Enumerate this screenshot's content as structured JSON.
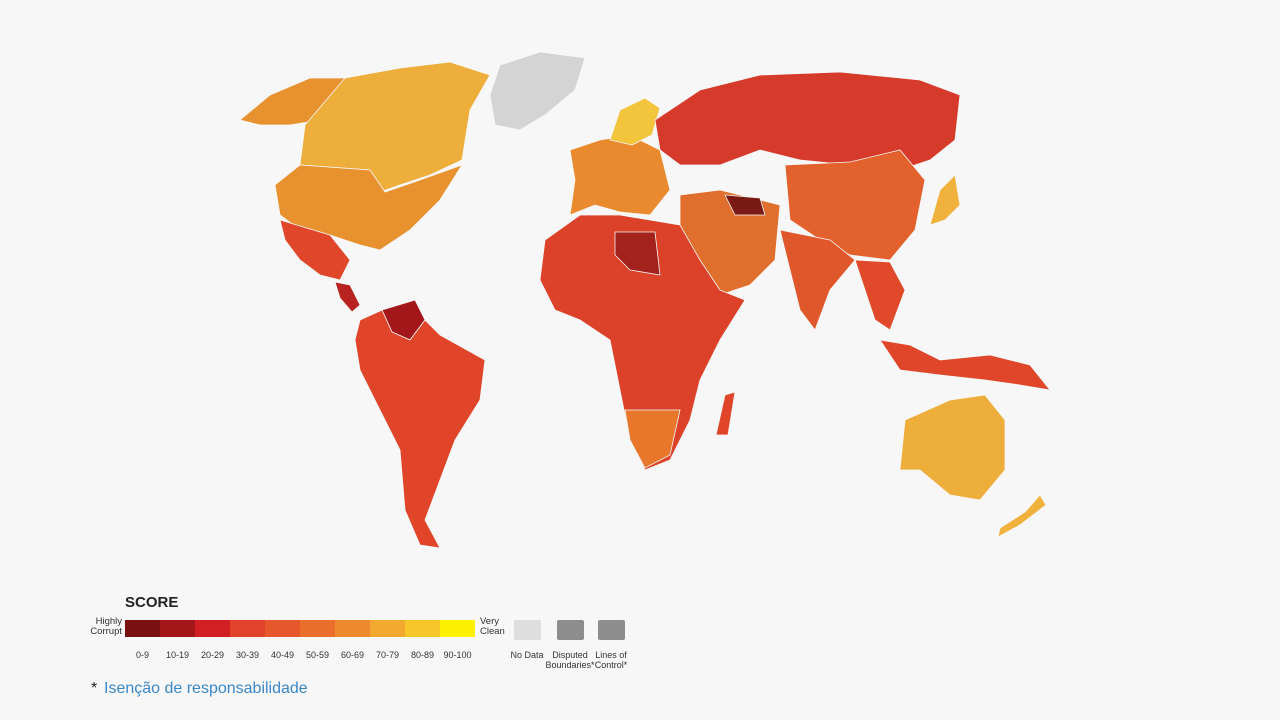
{
  "legend": {
    "title": "SCORE",
    "low_label": "Highly Corrupt",
    "high_label": "Very Clean",
    "ranges": [
      "0-9",
      "10-19",
      "20-29",
      "30-39",
      "40-49",
      "50-59",
      "60-69",
      "70-79",
      "80-89",
      "90-100"
    ],
    "colors": [
      "#7a1010",
      "#a3161a",
      "#d11f24",
      "#e2412a",
      "#e6582b",
      "#ea6f2c",
      "#ee8a2e",
      "#f3a830",
      "#f7c62a",
      "#fff200"
    ],
    "no_data": "No Data",
    "disputed": "Disputed Boundaries*",
    "lines_of_control": "Lines of Control*"
  },
  "footer": {
    "marker": "*",
    "link": "Isenção de responsabilidade"
  }
}
